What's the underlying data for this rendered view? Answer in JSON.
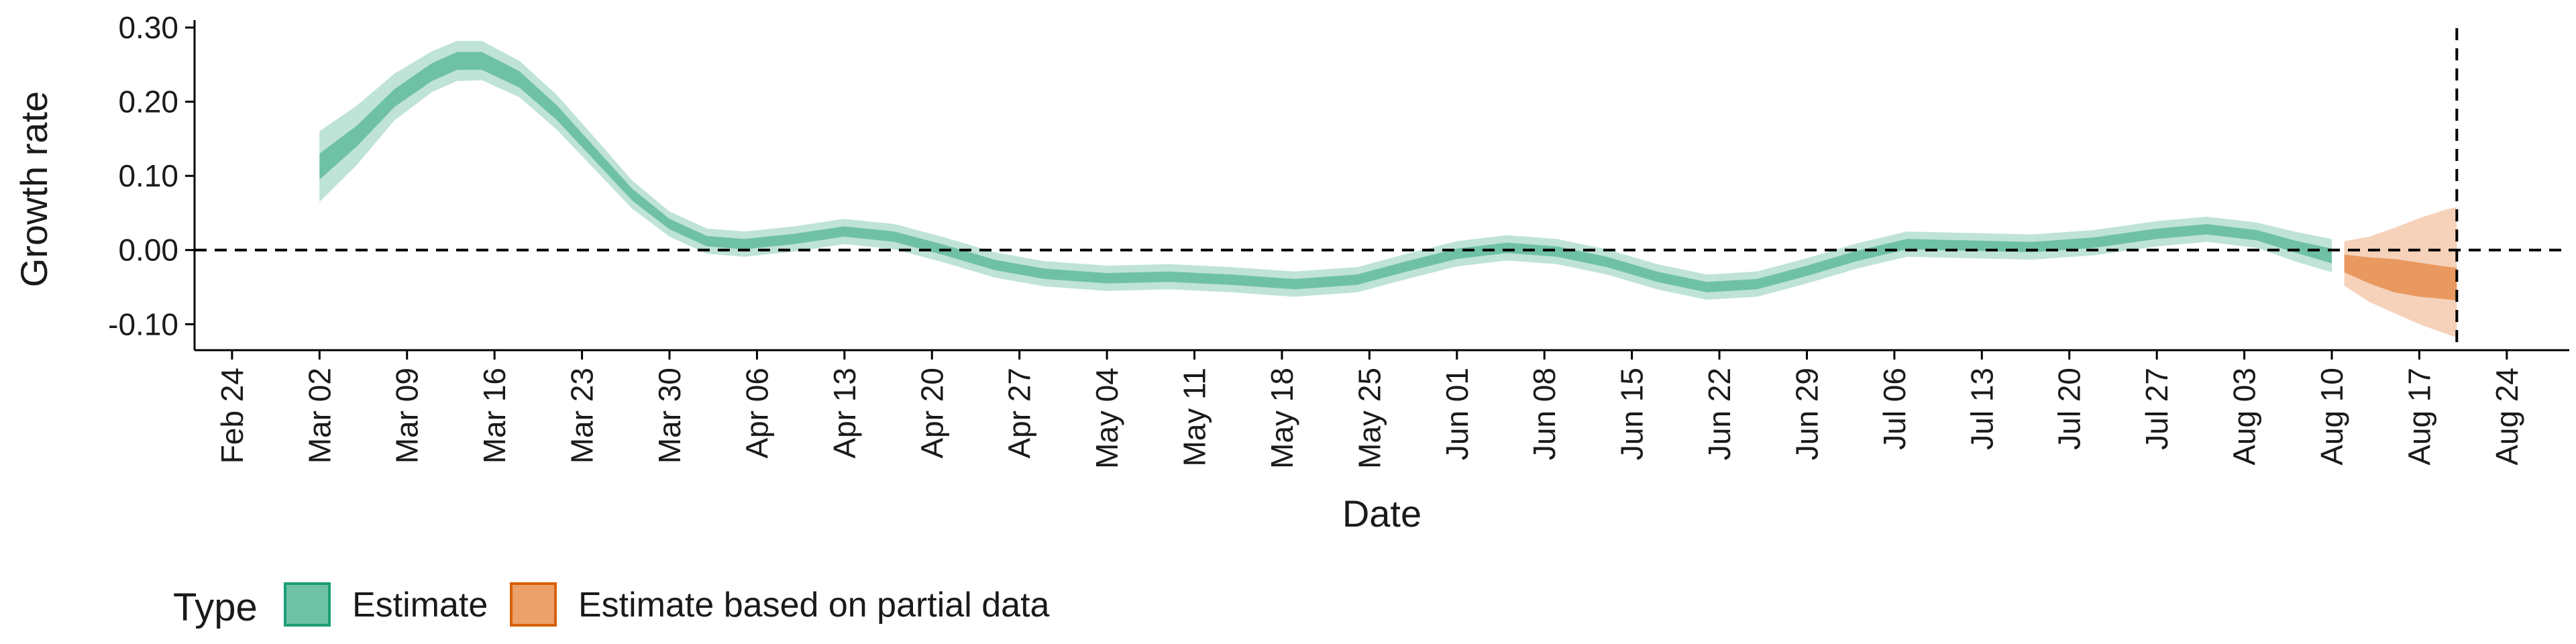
{
  "chart_data": {
    "type": "area",
    "xlabel": "Date",
    "ylabel": "Growth rate",
    "ylim": [
      -0.135,
      0.31
    ],
    "xlim": [
      "2020-02-21",
      "2020-08-29"
    ],
    "yticks": [
      0.3,
      0.2,
      0.1,
      0.0,
      -0.1
    ],
    "ytick_labels": [
      "0.30",
      "0.20",
      "0.10",
      "0.00",
      "-0.10"
    ],
    "xticks": [
      "2020-02-24",
      "2020-03-02",
      "2020-03-09",
      "2020-03-16",
      "2020-03-23",
      "2020-03-30",
      "2020-04-06",
      "2020-04-13",
      "2020-04-20",
      "2020-04-27",
      "2020-05-04",
      "2020-05-11",
      "2020-05-18",
      "2020-05-25",
      "2020-06-01",
      "2020-06-08",
      "2020-06-15",
      "2020-06-22",
      "2020-06-29",
      "2020-07-06",
      "2020-07-13",
      "2020-07-20",
      "2020-07-27",
      "2020-08-03",
      "2020-08-10",
      "2020-08-17",
      "2020-08-24"
    ],
    "xtick_labels": [
      "Feb 24",
      "Mar 02",
      "Mar 09",
      "Mar 16",
      "Mar 23",
      "Mar 30",
      "Apr 06",
      "Apr 13",
      "Apr 20",
      "Apr 27",
      "May 04",
      "May 11",
      "May 18",
      "May 25",
      "Jun 01",
      "Jun 08",
      "Jun 15",
      "Jun 22",
      "Jun 29",
      "Jul 06",
      "Jul 13",
      "Jul 20",
      "Jul 27",
      "Aug 03",
      "Aug 10",
      "Aug 17",
      "Aug 24"
    ],
    "hline_y": 0,
    "vline_x": "2020-08-20",
    "grid": false,
    "legend": {
      "title": "Type",
      "position": "bottom-left",
      "entries": [
        {
          "label": "Estimate",
          "fill": "#6fc1a6",
          "stroke": "#1b9e77"
        },
        {
          "label": "Estimate based on partial data",
          "fill": "#eca06a",
          "stroke": "#d95f02"
        }
      ]
    },
    "series": [
      {
        "name": "Estimate",
        "color_outer": "#bfe3d7",
        "color_inner": "#6fc1a6",
        "x": [
          "2020-03-02",
          "2020-03-05",
          "2020-03-08",
          "2020-03-11",
          "2020-03-13",
          "2020-03-15",
          "2020-03-18",
          "2020-03-21",
          "2020-03-24",
          "2020-03-27",
          "2020-03-30",
          "2020-04-02",
          "2020-04-05",
          "2020-04-09",
          "2020-04-13",
          "2020-04-17",
          "2020-04-21",
          "2020-04-25",
          "2020-04-29",
          "2020-05-04",
          "2020-05-09",
          "2020-05-14",
          "2020-05-19",
          "2020-05-24",
          "2020-05-28",
          "2020-06-01",
          "2020-06-05",
          "2020-06-09",
          "2020-06-13",
          "2020-06-17",
          "2020-06-21",
          "2020-06-25",
          "2020-06-29",
          "2020-07-03",
          "2020-07-07",
          "2020-07-12",
          "2020-07-17",
          "2020-07-22",
          "2020-07-27",
          "2020-07-31",
          "2020-08-04",
          "2020-08-07",
          "2020-08-10"
        ],
        "median": [
          0.115,
          0.155,
          0.205,
          0.24,
          0.255,
          0.255,
          0.23,
          0.185,
          0.13,
          0.075,
          0.035,
          0.012,
          0.008,
          0.015,
          0.025,
          0.018,
          0.0,
          -0.02,
          -0.032,
          -0.038,
          -0.036,
          -0.04,
          -0.046,
          -0.04,
          -0.022,
          -0.005,
          0.003,
          -0.002,
          -0.016,
          -0.036,
          -0.05,
          -0.046,
          -0.028,
          -0.008,
          0.008,
          0.006,
          0.004,
          0.01,
          0.022,
          0.028,
          0.02,
          0.005,
          -0.008
        ],
        "inner_low": [
          0.095,
          0.14,
          0.193,
          0.228,
          0.243,
          0.243,
          0.219,
          0.175,
          0.121,
          0.067,
          0.028,
          0.005,
          0.001,
          0.008,
          0.018,
          0.011,
          -0.007,
          -0.027,
          -0.039,
          -0.045,
          -0.043,
          -0.047,
          -0.053,
          -0.047,
          -0.029,
          -0.012,
          -0.004,
          -0.009,
          -0.023,
          -0.043,
          -0.057,
          -0.053,
          -0.035,
          -0.015,
          0.001,
          -0.001,
          -0.003,
          0.003,
          0.015,
          0.021,
          0.013,
          -0.003,
          -0.018
        ],
        "inner_high": [
          0.13,
          0.168,
          0.217,
          0.252,
          0.267,
          0.267,
          0.241,
          0.195,
          0.139,
          0.083,
          0.042,
          0.019,
          0.015,
          0.022,
          0.032,
          0.025,
          0.007,
          -0.013,
          -0.025,
          -0.031,
          -0.029,
          -0.033,
          -0.039,
          -0.033,
          -0.015,
          0.002,
          0.01,
          0.005,
          -0.009,
          -0.029,
          -0.043,
          -0.039,
          -0.021,
          -0.001,
          0.015,
          0.013,
          0.011,
          0.017,
          0.029,
          0.035,
          0.027,
          0.013,
          0.002
        ],
        "outer_low": [
          0.065,
          0.115,
          0.175,
          0.213,
          0.228,
          0.229,
          0.206,
          0.162,
          0.109,
          0.056,
          0.018,
          -0.005,
          -0.009,
          -0.002,
          0.008,
          0.001,
          -0.017,
          -0.037,
          -0.049,
          -0.055,
          -0.053,
          -0.057,
          -0.063,
          -0.057,
          -0.039,
          -0.022,
          -0.014,
          -0.019,
          -0.033,
          -0.053,
          -0.067,
          -0.063,
          -0.045,
          -0.025,
          -0.009,
          -0.011,
          -0.013,
          -0.007,
          0.005,
          0.011,
          0.003,
          -0.015,
          -0.03
        ],
        "outer_high": [
          0.16,
          0.195,
          0.238,
          0.268,
          0.282,
          0.282,
          0.255,
          0.209,
          0.152,
          0.094,
          0.052,
          0.029,
          0.025,
          0.032,
          0.042,
          0.035,
          0.017,
          -0.003,
          -0.015,
          -0.021,
          -0.019,
          -0.023,
          -0.029,
          -0.023,
          -0.005,
          0.012,
          0.02,
          0.015,
          0.001,
          -0.019,
          -0.033,
          -0.029,
          -0.011,
          0.009,
          0.025,
          0.023,
          0.021,
          0.027,
          0.039,
          0.045,
          0.037,
          0.025,
          0.015
        ]
      },
      {
        "name": "Estimate based on partial data",
        "color_outer": "#f6d2bb",
        "color_inner": "#e9995f",
        "x": [
          "2020-08-11",
          "2020-08-13",
          "2020-08-15",
          "2020-08-17",
          "2020-08-19",
          "2020-08-20"
        ],
        "median": [
          -0.018,
          -0.028,
          -0.036,
          -0.042,
          -0.046,
          -0.047
        ],
        "inner_low": [
          -0.03,
          -0.045,
          -0.057,
          -0.063,
          -0.066,
          -0.068
        ],
        "inner_high": [
          -0.006,
          -0.01,
          -0.012,
          -0.017,
          -0.022,
          -0.024
        ],
        "outer_low": [
          -0.048,
          -0.07,
          -0.085,
          -0.1,
          -0.112,
          -0.118
        ],
        "outer_high": [
          0.012,
          0.018,
          0.03,
          0.043,
          0.054,
          0.058
        ]
      }
    ]
  }
}
